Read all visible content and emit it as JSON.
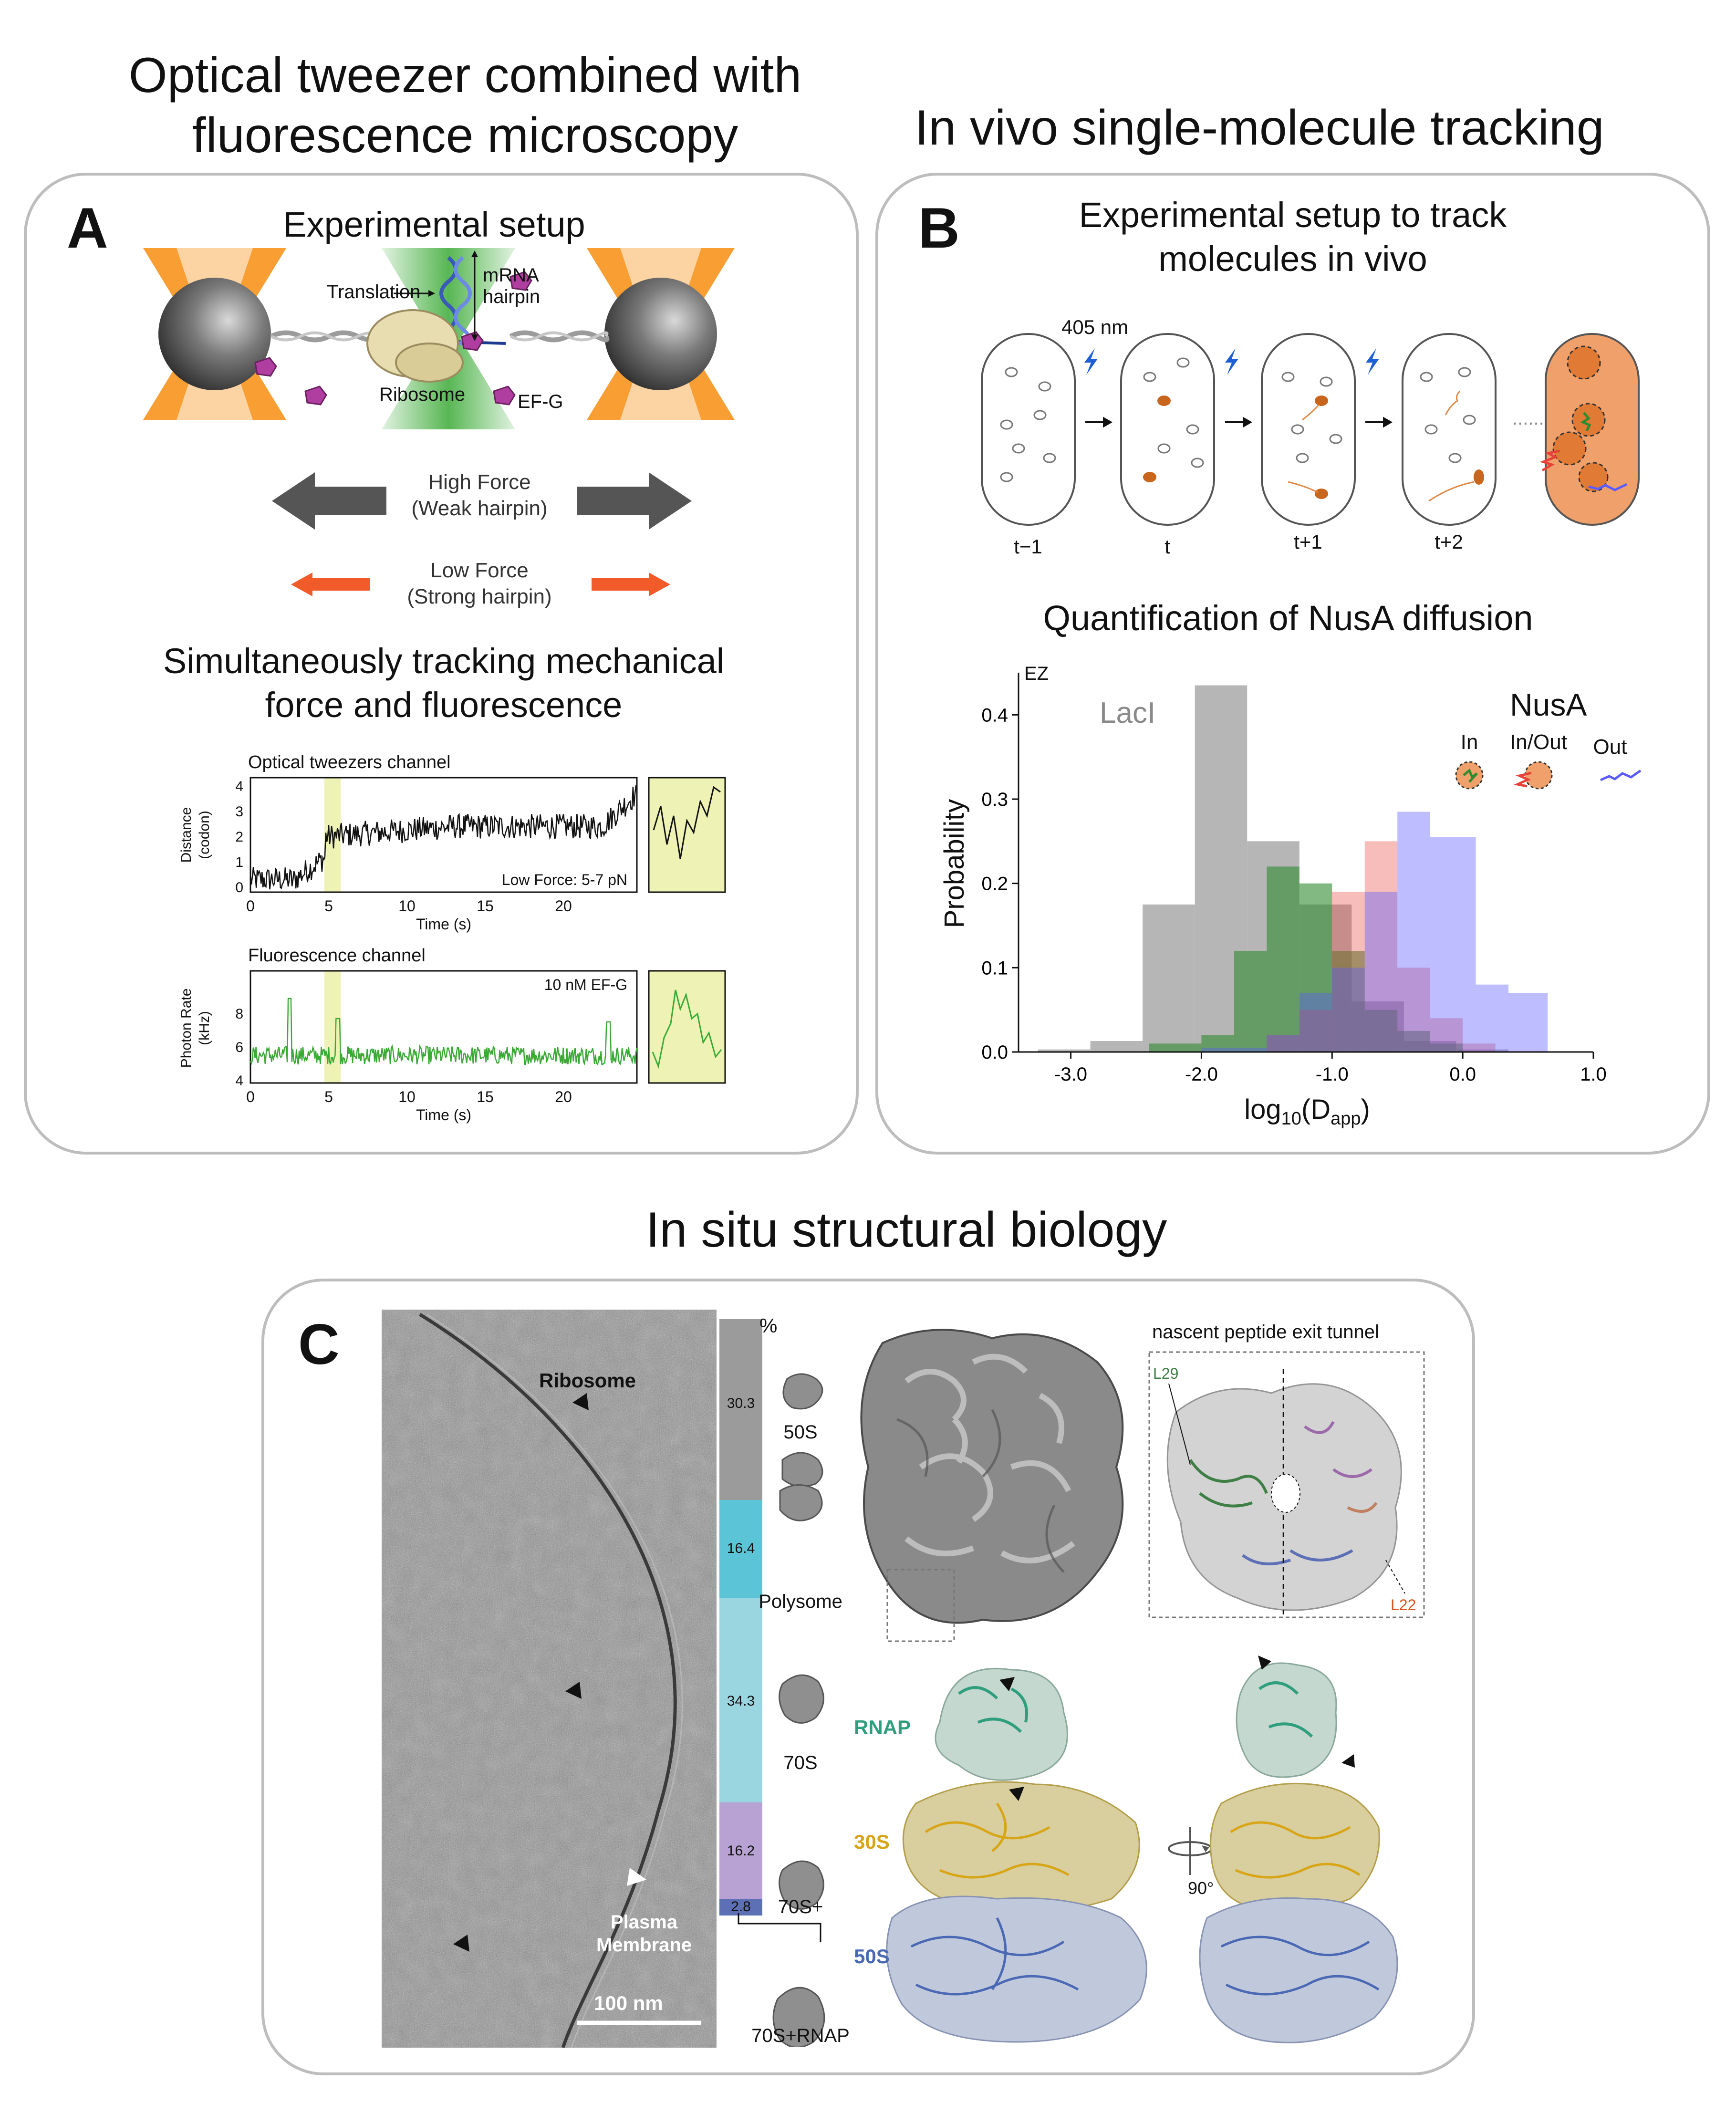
{
  "titles": {
    "tweezer": "Optical tweezer combined with\nfluorescence microscopy",
    "tracking": "In vivo single-molecule tracking",
    "insitu": "In situ structural biology"
  },
  "panelA": {
    "label": "A",
    "setup_title": "Experimental setup",
    "translation": "Translation",
    "mrna": "mRNA\nhairpin",
    "ribosome": "Ribosome",
    "efg": "EF-G",
    "high_force": "High Force\n(Weak hairpin)",
    "low_force": "Low Force\n(Strong hairpin)",
    "track_title": "Simultaneously tracking mechanical\nforce and fluorescence",
    "ot_channel": "Optical tweezers channel",
    "ot_ylabel_1": "Distance",
    "ot_ylabel_2": "(codon)",
    "ot_xlabel": "Time (s)",
    "ot_note": "Low Force: 5-7 pN",
    "ot_yticks": [
      "0",
      "1",
      "2",
      "3",
      "4"
    ],
    "fl_channel": "Fluorescence channel",
    "fl_ylabel_1": "Photon Rate",
    "fl_ylabel_2": "(kHz)",
    "fl_xlabel": "Time (s)",
    "fl_note": "10 nM EF-G",
    "fl_yticks": [
      "4",
      "6",
      "8"
    ],
    "xticks": [
      "0",
      "5",
      "10",
      "15",
      "20"
    ],
    "colors": {
      "orange": "#f7941d",
      "green": "#3aaa35",
      "highlight": "#eef2b4",
      "arrow_dark": "#555555",
      "arrow_orange": "#f15a29",
      "magenta": "#b03ea0"
    }
  },
  "panelB": {
    "label": "B",
    "setup_title": "Experimental setup to track\nmolecules in vivo",
    "laser": "405 nm",
    "frames": [
      "t−1",
      "t",
      "t+1",
      "t+2"
    ],
    "ellipsis": "......",
    "quant_title": "Quantification of NusA diffusion",
    "corner": "EZ",
    "laci": "LacI",
    "nusa": "NusA",
    "legend": [
      "In",
      "In/Out",
      "Out"
    ],
    "colors": {
      "cell_orange": "#c8661e",
      "bolt": "#1f5fd6",
      "laci": "#a9a9a9",
      "in": "#2e8b2e",
      "inout": "#e8413a",
      "out": "#5b5bff"
    }
  },
  "chart_data": {
    "type": "bar",
    "xlabel": "log₁₀(Dₐₚₚ)",
    "xlabel_main": "log",
    "xlabel_sub1": "10",
    "xlabel_mid": "(D",
    "xlabel_sub2": "app",
    "xlabel_end": ")",
    "ylabel": "Probability",
    "xlim": [
      -3.4,
      1.0
    ],
    "ylim": [
      0,
      0.45
    ],
    "xticks": [
      -3.0,
      -2.0,
      -1.0,
      0.0,
      1.0
    ],
    "xtick_labels": [
      "-3.0",
      "-2.0",
      "-1.0",
      "0.0",
      "1.0"
    ],
    "yticks": [
      0.0,
      0.1,
      0.2,
      0.3,
      0.4
    ],
    "ytick_labels": [
      "0.0",
      "0.1",
      "0.2",
      "0.3",
      "0.4"
    ],
    "series": [
      {
        "name": "LacI",
        "color": "#a9a9a9",
        "alpha": 0.85,
        "bins": [
          [
            -3.25,
            -2.85,
            0.003
          ],
          [
            -2.85,
            -2.45,
            0.013
          ],
          [
            -2.45,
            -2.05,
            0.175
          ],
          [
            -2.05,
            -1.65,
            0.435
          ],
          [
            -1.65,
            -1.25,
            0.25
          ],
          [
            -1.25,
            -0.85,
            0.175
          ],
          [
            -0.85,
            -0.45,
            0.06
          ],
          [
            -0.45,
            -0.05,
            0.013
          ],
          [
            -0.05,
            0.35,
            0.003
          ]
        ]
      },
      {
        "name": "In",
        "color": "#2e8b2e",
        "alpha": 0.6,
        "bins": [
          [
            -2.4,
            -2.0,
            0.01
          ],
          [
            -2.0,
            -1.75,
            0.02
          ],
          [
            -1.75,
            -1.5,
            0.12
          ],
          [
            -1.5,
            -1.25,
            0.22
          ],
          [
            -1.25,
            -1.0,
            0.2
          ],
          [
            -1.0,
            -0.75,
            0.12
          ],
          [
            -0.75,
            -0.5,
            0.05
          ],
          [
            -0.5,
            -0.25,
            0.025
          ],
          [
            -0.25,
            0.0,
            0.01
          ]
        ]
      },
      {
        "name": "In/Out",
        "color": "#e8413a",
        "alpha": 0.35,
        "bins": [
          [
            -1.5,
            -1.25,
            0.02
          ],
          [
            -1.25,
            -1.0,
            0.05
          ],
          [
            -1.0,
            -0.75,
            0.19
          ],
          [
            -0.75,
            -0.5,
            0.25
          ],
          [
            -0.5,
            -0.25,
            0.1
          ],
          [
            -0.25,
            0.0,
            0.04
          ],
          [
            0.0,
            0.25,
            0.01
          ]
        ]
      },
      {
        "name": "Out",
        "color": "#5b5bff",
        "alpha": 0.4,
        "bins": [
          [
            -2.0,
            -1.5,
            0.005
          ],
          [
            -1.5,
            -1.25,
            0.02
          ],
          [
            -1.25,
            -1.0,
            0.07
          ],
          [
            -1.0,
            -0.75,
            0.1
          ],
          [
            -0.75,
            -0.5,
            0.19
          ],
          [
            -0.5,
            -0.25,
            0.285
          ],
          [
            -0.25,
            0.1,
            0.255
          ],
          [
            0.1,
            0.35,
            0.08
          ],
          [
            0.35,
            0.65,
            0.07
          ]
        ]
      }
    ]
  },
  "panelC": {
    "label": "C",
    "ribosome": "Ribosome",
    "membrane": "Plasma\nMembrane",
    "scalebar": "100 nm",
    "percent": "%",
    "bar_segments": [
      {
        "value": "30.3",
        "color": "#9b9b9b"
      },
      {
        "value": "16.4",
        "color": "#5bc4d6"
      },
      {
        "value": "34.3",
        "color": "#9ad6e0"
      },
      {
        "value": "16.2",
        "color": "#b7a2d3"
      },
      {
        "value": "2.8",
        "color": "#5d6fb5"
      }
    ],
    "classes": [
      "50S",
      "Polysome",
      "70S",
      "70S+",
      "70S+RNAP"
    ],
    "exit_tunnel": "nascent peptide exit tunnel",
    "l29": "L29",
    "l22": "L22",
    "rnap": "RNAP",
    "s30": "30S",
    "s50": "50S",
    "rotation": "90°",
    "colors": {
      "rnap": "#2f9e7d",
      "s30": "#d7a515",
      "s50": "#4a68b3",
      "l22": "#d9541e"
    }
  }
}
